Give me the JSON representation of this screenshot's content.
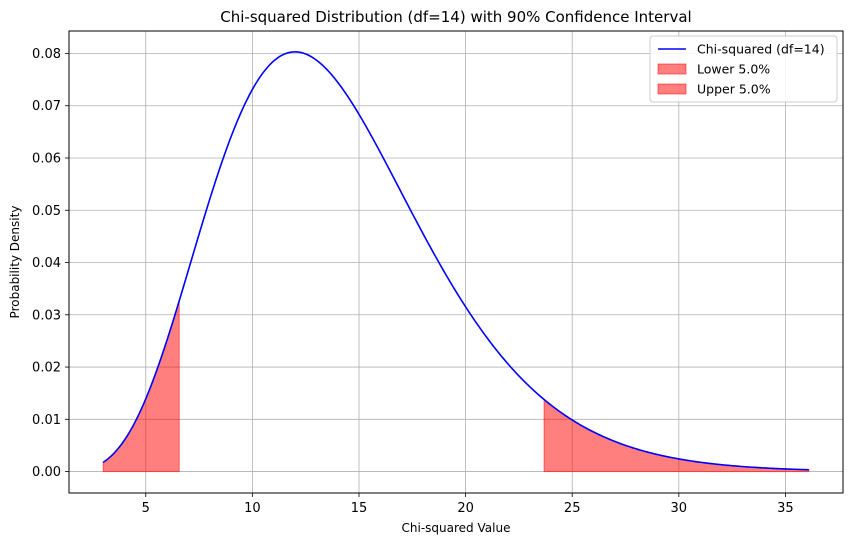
{
  "chart_data": {
    "type": "area",
    "title": "Chi-squared Distribution (df=14) with 90% Confidence Interval",
    "xlabel": "Chi-squared Value",
    "ylabel": "Probability Density",
    "xlim": [
      1.4,
      37.7
    ],
    "ylim": [
      -0.0041,
      0.0843
    ],
    "xticks": [
      5,
      10,
      15,
      20,
      25,
      30,
      35
    ],
    "yticks": [
      0.0,
      0.01,
      0.02,
      0.03,
      0.04,
      0.05,
      0.06,
      0.07,
      0.08
    ],
    "ytick_labels": [
      "0.00",
      "0.01",
      "0.02",
      "0.03",
      "0.04",
      "0.05",
      "0.06",
      "0.07",
      "0.08"
    ],
    "grid": true,
    "legend_position": "top-right",
    "df": 14,
    "curve_range": [
      3.0,
      36.1
    ],
    "lower_tail": {
      "label": "Lower 5.0%",
      "from": 3.0,
      "to": 6.57
    },
    "upper_tail": {
      "label": "Upper 5.0%",
      "from": 23.68,
      "to": 36.1
    },
    "series": [
      {
        "name": "Chi-squared (df=14)",
        "color": "#0000ff"
      }
    ],
    "fill_color": "#ff0000"
  }
}
